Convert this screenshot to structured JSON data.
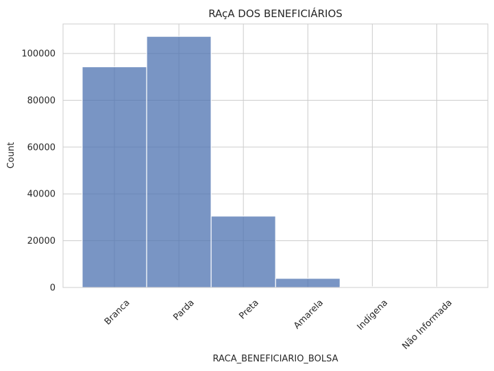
{
  "chart_data": {
    "type": "bar",
    "title": "RAçA DOS BENEFICIÁRIOS",
    "xlabel": "RACA_BENEFICIARIO_BOLSA",
    "ylabel": "Count",
    "categories": [
      "Branca",
      "Parda",
      "Preta",
      "Amarela",
      "Indígena",
      "Não Informada"
    ],
    "values": [
      94300,
      107300,
      30500,
      3900,
      300,
      200
    ],
    "ylim": [
      0,
      112600
    ],
    "yticks": [
      0,
      20000,
      40000,
      60000,
      80000,
      100000
    ],
    "ytick_labels": [
      "0",
      "20000",
      "40000",
      "60000",
      "80000",
      "100000"
    ],
    "grid": true,
    "bar_color": "#4c72b0",
    "bar_alpha": 0.75
  }
}
